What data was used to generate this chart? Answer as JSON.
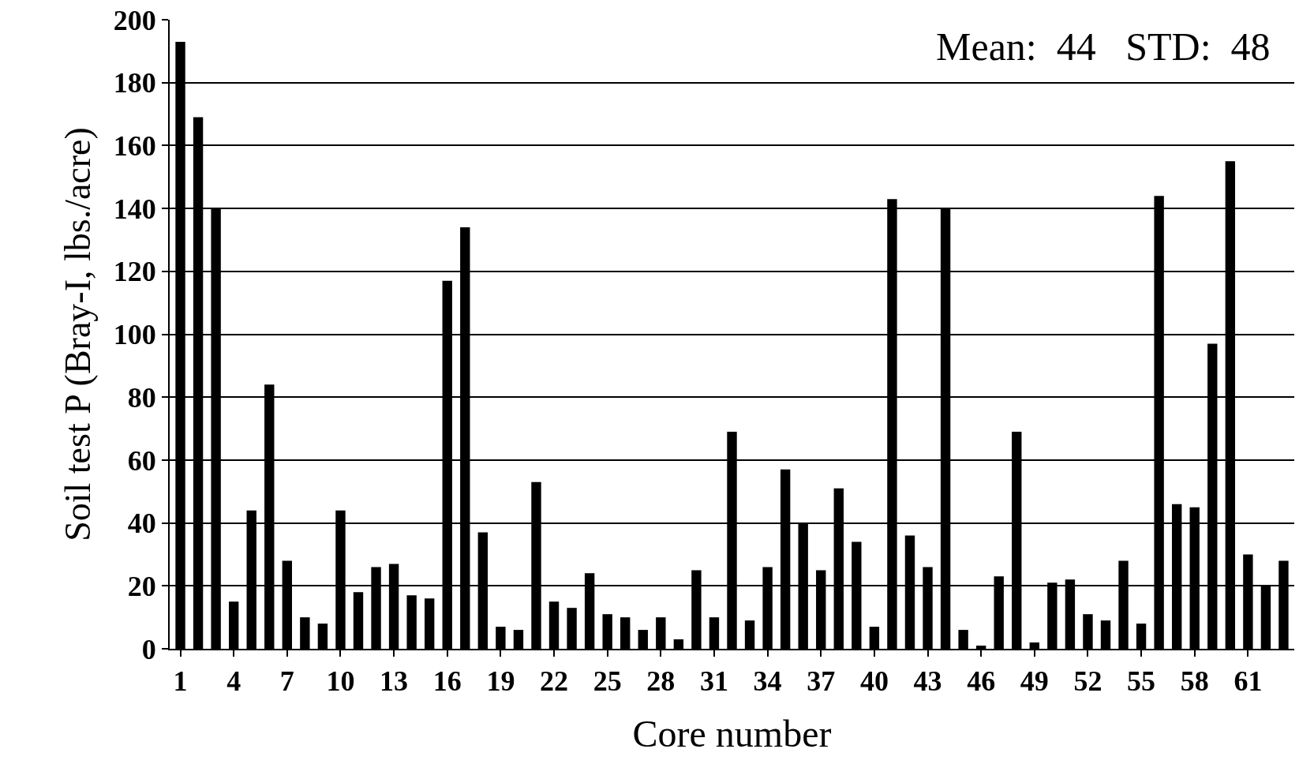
{
  "chart_data": {
    "type": "bar",
    "xlabel": "Core number",
    "ylabel": "Soil test P (Bray-I, lbs./acre)",
    "categories": [
      "1",
      null,
      null,
      "4",
      null,
      null,
      "7",
      null,
      null,
      "10",
      null,
      null,
      "13",
      null,
      null,
      "16",
      null,
      null,
      "19",
      null,
      null,
      "22",
      null,
      null,
      "25",
      null,
      null,
      "28",
      null,
      null,
      "31",
      null,
      null,
      "34",
      null,
      null,
      "37",
      null,
      null,
      "40",
      null,
      null,
      "43",
      null,
      null,
      "46",
      null,
      null,
      "49",
      null,
      null,
      "52",
      null,
      null,
      "55",
      null,
      null,
      "58",
      null,
      null,
      "61",
      null,
      null
    ],
    "values": [
      193,
      169,
      140,
      15,
      44,
      84,
      28,
      10,
      8,
      44,
      18,
      26,
      27,
      17,
      16,
      117,
      134,
      37,
      7,
      6,
      53,
      15,
      13,
      24,
      11,
      10,
      6,
      10,
      3,
      25,
      10,
      69,
      9,
      26,
      57,
      40,
      25,
      51,
      34,
      7,
      143,
      36,
      26,
      140,
      6,
      1,
      23,
      69,
      2,
      21,
      22,
      11,
      9,
      28,
      8,
      144,
      46,
      45,
      97,
      155,
      30,
      20,
      28
    ],
    "color": "#000000",
    "ylim": [
      0,
      200
    ],
    "yticks": [
      0,
      20,
      40,
      60,
      80,
      100,
      120,
      140,
      160,
      180,
      200
    ],
    "grid": "y",
    "annotations": [
      "Mean:  44   STD:  48"
    ]
  }
}
